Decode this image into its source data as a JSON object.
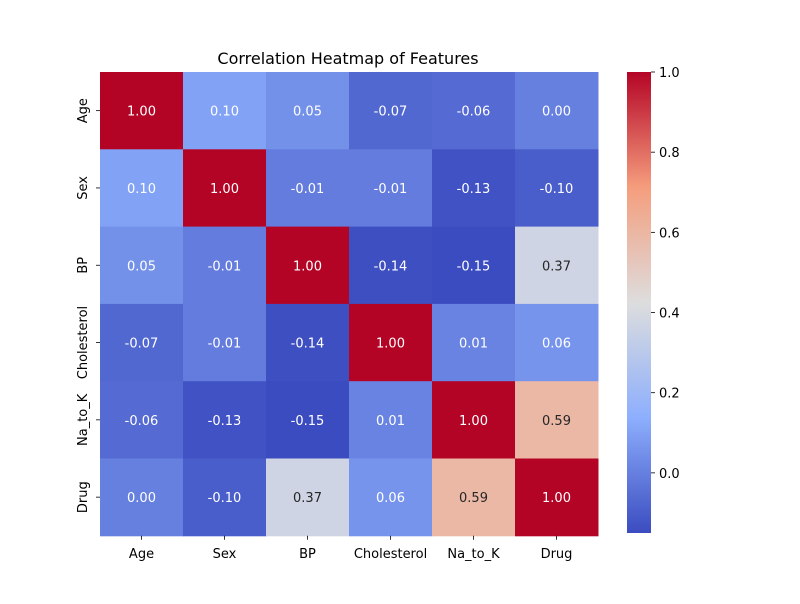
{
  "chart_data": {
    "type": "heatmap",
    "title": "Correlation Heatmap of Features",
    "x_labels": [
      "Age",
      "Sex",
      "BP",
      "Cholesterol",
      "Na_to_K",
      "Drug"
    ],
    "y_labels": [
      "Age",
      "Sex",
      "BP",
      "Cholesterol",
      "Na_to_K",
      "Drug"
    ],
    "values": [
      [
        1.0,
        0.1,
        0.05,
        -0.07,
        -0.06,
        -0.0
      ],
      [
        0.1,
        1.0,
        -0.01,
        -0.01,
        -0.13,
        -0.1
      ],
      [
        0.05,
        -0.01,
        1.0,
        -0.14,
        -0.15,
        0.37
      ],
      [
        -0.07,
        -0.01,
        -0.14,
        1.0,
        0.01,
        0.06
      ],
      [
        -0.06,
        -0.13,
        -0.15,
        0.01,
        1.0,
        0.59
      ],
      [
        -0.0,
        -0.1,
        0.37,
        0.06,
        0.59,
        1.0
      ]
    ],
    "annotation_format": "2 decimals",
    "colormap": "coolwarm",
    "vmin": -0.15,
    "vmax": 1.0,
    "colorbar_ticks": [
      0.0,
      0.2,
      0.4,
      0.6,
      0.8,
      1.0
    ],
    "colorbar_tick_labels": [
      "0.0",
      "0.2",
      "0.4",
      "0.6",
      "0.8",
      "1.0"
    ],
    "colorbar_position": "right"
  }
}
